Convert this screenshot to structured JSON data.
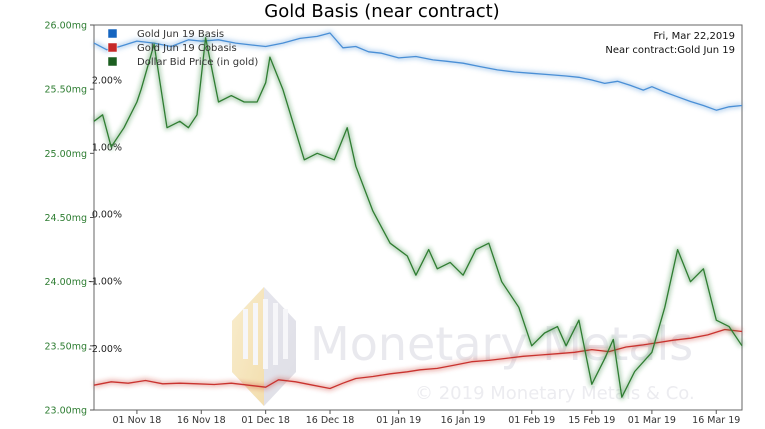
{
  "chart_data": {
    "type": "line",
    "title": "Gold Basis (near contract)",
    "info_date": "Fri, Mar 22,2019",
    "info_contract": "Near contract:Gold Jun 19",
    "watermark": {
      "brand": "Monetary Metals",
      "copyright": "© 2019 Monetary Metals & Co."
    },
    "x_tick_labels": [
      "01 Nov 18",
      "16 Nov 18",
      "01 Dec 18",
      "16 Dec 18",
      "01 Jan 19",
      "16 Jan 19",
      "01 Feb 19",
      "15 Feb 19",
      "01 Mar 19",
      "16 Mar 19"
    ],
    "x_tick_dates": [
      "2018-11-01",
      "2018-11-16",
      "2018-12-01",
      "2018-12-16",
      "2019-01-01",
      "2019-01-16",
      "2019-02-01",
      "2019-02-15",
      "2019-03-01",
      "2019-03-16"
    ],
    "x_range": [
      "2018-10-22",
      "2019-03-22"
    ],
    "left_axis": {
      "tick_labels": [
        "26.00mg",
        "25.50mg",
        "25.00mg",
        "24.50mg",
        "24.00mg",
        "23.50mg",
        "23.00mg"
      ],
      "tick_values": [
        26.0,
        25.5,
        25.0,
        24.5,
        24.0,
        23.5,
        23.0
      ],
      "range": [
        23.0,
        26.0
      ],
      "unit": "mg",
      "color": "#2e7d32"
    },
    "right_axis": {
      "tick_labels": [
        "2.00%",
        "1.00%",
        "0.00%",
        "-1.00%",
        "-2.00%"
      ],
      "tick_values": [
        2.0,
        1.0,
        0.0,
        -1.0,
        -2.0
      ],
      "range": [
        -2.92,
        2.82
      ],
      "unit": "%"
    },
    "legend": {
      "placement": "top-left",
      "entries": [
        {
          "label": "Gold Jun 19 Basis",
          "color": "#1565c0"
        },
        {
          "label": "Gold Jun 19 Cobasis",
          "color": "#c62828"
        },
        {
          "label": "Dollar Bid Price (in gold)",
          "color": "#1b5e20"
        }
      ]
    },
    "grid": false,
    "series": [
      {
        "name": "Gold Jun 19 Basis",
        "axis": "right",
        "color": "#4a8fd6",
        "x": [
          "2018-10-22",
          "2018-10-25",
          "2018-10-28",
          "2018-11-01",
          "2018-11-05",
          "2018-11-09",
          "2018-11-13",
          "2018-11-16",
          "2018-11-20",
          "2018-11-24",
          "2018-11-28",
          "2018-12-01",
          "2018-12-05",
          "2018-12-09",
          "2018-12-13",
          "2018-12-16",
          "2018-12-19",
          "2018-12-22",
          "2018-12-25",
          "2018-12-28",
          "2019-01-01",
          "2019-01-05",
          "2019-01-09",
          "2019-01-12",
          "2019-01-16",
          "2019-01-20",
          "2019-01-24",
          "2019-01-28",
          "2019-02-01",
          "2019-02-05",
          "2019-02-09",
          "2019-02-12",
          "2019-02-15",
          "2019-02-18",
          "2019-02-21",
          "2019-02-24",
          "2019-02-27",
          "2019-03-01",
          "2019-03-04",
          "2019-03-07",
          "2019-03-10",
          "2019-03-13",
          "2019-03-16",
          "2019-03-19",
          "2019-03-22"
        ],
        "values": [
          2.55,
          2.45,
          2.5,
          2.58,
          2.55,
          2.5,
          2.6,
          2.58,
          2.6,
          2.55,
          2.52,
          2.5,
          2.55,
          2.62,
          2.65,
          2.7,
          2.48,
          2.5,
          2.42,
          2.4,
          2.33,
          2.35,
          2.3,
          2.28,
          2.25,
          2.2,
          2.15,
          2.12,
          2.1,
          2.08,
          2.06,
          2.04,
          2.0,
          1.95,
          1.98,
          1.92,
          1.85,
          1.9,
          1.82,
          1.75,
          1.68,
          1.62,
          1.55,
          1.6,
          1.62
        ]
      },
      {
        "name": "Gold Jun 19 Cobasis",
        "axis": "right",
        "color": "#c9332f",
        "x": [
          "2018-10-22",
          "2018-10-26",
          "2018-10-30",
          "2018-11-03",
          "2018-11-07",
          "2018-11-11",
          "2018-11-15",
          "2018-11-19",
          "2018-11-23",
          "2018-11-27",
          "2018-12-01",
          "2018-12-04",
          "2018-12-08",
          "2018-12-12",
          "2018-12-16",
          "2018-12-19",
          "2018-12-22",
          "2018-12-26",
          "2018-12-30",
          "2019-01-03",
          "2019-01-06",
          "2019-01-10",
          "2019-01-14",
          "2019-01-18",
          "2019-01-22",
          "2019-01-26",
          "2019-01-30",
          "2019-02-03",
          "2019-02-07",
          "2019-02-11",
          "2019-02-15",
          "2019-02-19",
          "2019-02-23",
          "2019-02-27",
          "2019-03-02",
          "2019-03-06",
          "2019-03-10",
          "2019-03-14",
          "2019-03-18",
          "2019-03-22"
        ],
        "values": [
          -2.55,
          -2.5,
          -2.52,
          -2.48,
          -2.53,
          -2.52,
          -2.53,
          -2.54,
          -2.52,
          -2.55,
          -2.58,
          -2.47,
          -2.5,
          -2.55,
          -2.6,
          -2.52,
          -2.45,
          -2.42,
          -2.38,
          -2.35,
          -2.32,
          -2.3,
          -2.25,
          -2.2,
          -2.18,
          -2.15,
          -2.12,
          -2.1,
          -2.08,
          -2.06,
          -2.02,
          -2.05,
          -1.98,
          -1.95,
          -1.92,
          -1.88,
          -1.85,
          -1.8,
          -1.72,
          -1.75
        ]
      },
      {
        "name": "Dollar Bid Price (in gold)",
        "axis": "left",
        "color": "#2f7d32",
        "x": [
          "2018-10-22",
          "2018-10-24",
          "2018-10-26",
          "2018-10-29",
          "2018-11-01",
          "2018-11-02",
          "2018-11-05",
          "2018-11-08",
          "2018-11-11",
          "2018-11-13",
          "2018-11-15",
          "2018-11-17",
          "2018-11-20",
          "2018-11-23",
          "2018-11-26",
          "2018-11-29",
          "2018-12-01",
          "2018-12-02",
          "2018-12-05",
          "2018-12-07",
          "2018-12-10",
          "2018-12-13",
          "2018-12-17",
          "2018-12-20",
          "2018-12-22",
          "2018-12-26",
          "2018-12-30",
          "2019-01-03",
          "2019-01-05",
          "2019-01-08",
          "2019-01-10",
          "2019-01-13",
          "2019-01-16",
          "2019-01-19",
          "2019-01-22",
          "2019-01-25",
          "2019-01-29",
          "2019-02-01",
          "2019-02-04",
          "2019-02-07",
          "2019-02-09",
          "2019-02-12",
          "2019-02-15",
          "2019-02-18",
          "2019-02-20",
          "2019-02-22",
          "2019-02-25",
          "2019-03-01",
          "2019-03-04",
          "2019-03-07",
          "2019-03-10",
          "2019-03-13",
          "2019-03-16",
          "2019-03-19",
          "2019-03-22"
        ],
        "values": [
          25.25,
          25.3,
          25.05,
          25.2,
          25.4,
          25.5,
          25.85,
          25.2,
          25.25,
          25.2,
          25.3,
          25.9,
          25.4,
          25.45,
          25.4,
          25.4,
          25.55,
          25.75,
          25.5,
          25.28,
          24.95,
          25.0,
          24.95,
          25.2,
          24.9,
          24.55,
          24.3,
          24.2,
          24.05,
          24.25,
          24.1,
          24.15,
          24.05,
          24.25,
          24.3,
          24.0,
          23.8,
          23.5,
          23.6,
          23.65,
          23.5,
          23.7,
          23.2,
          23.4,
          23.55,
          23.1,
          23.3,
          23.45,
          23.8,
          24.25,
          24.0,
          24.1,
          23.7,
          23.65,
          23.5
        ]
      }
    ]
  }
}
